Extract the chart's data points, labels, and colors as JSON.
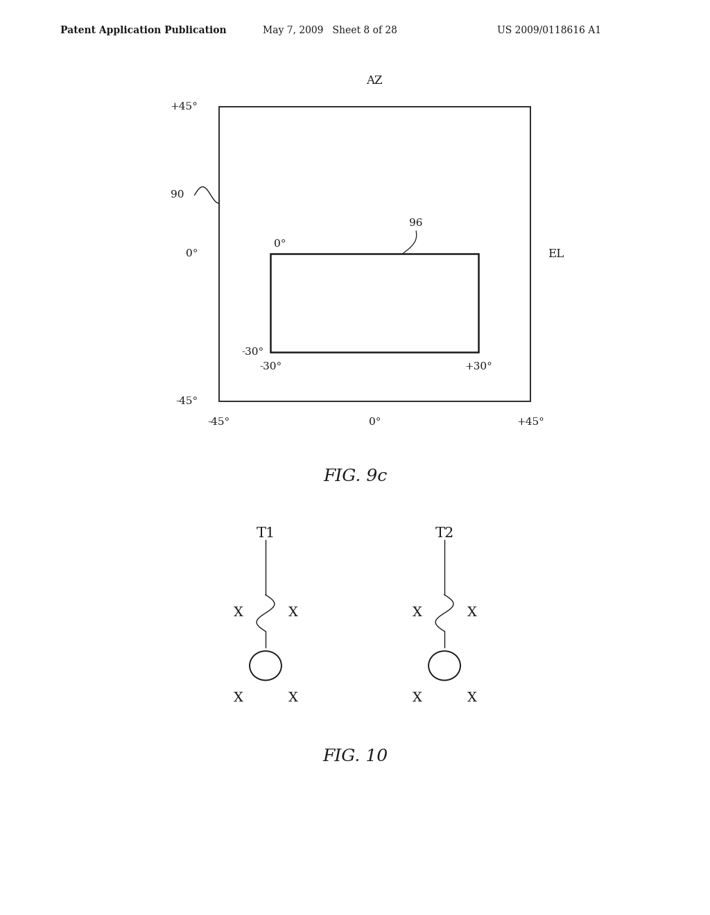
{
  "bg_color": "#ffffff",
  "header_left": "Patent Application Publication",
  "header_mid": "May 7, 2009   Sheet 8 of 28",
  "header_right": "US 2009/0118616 A1",
  "fig9c_title": "FIG. 9c",
  "fig10_title": "FIG. 10",
  "line_color": "#1a1a1a",
  "text_color": "#1a1a1a",
  "font_size_header": 10,
  "font_size_labels": 11,
  "font_size_title": 18,
  "font_size_fig10": 14
}
